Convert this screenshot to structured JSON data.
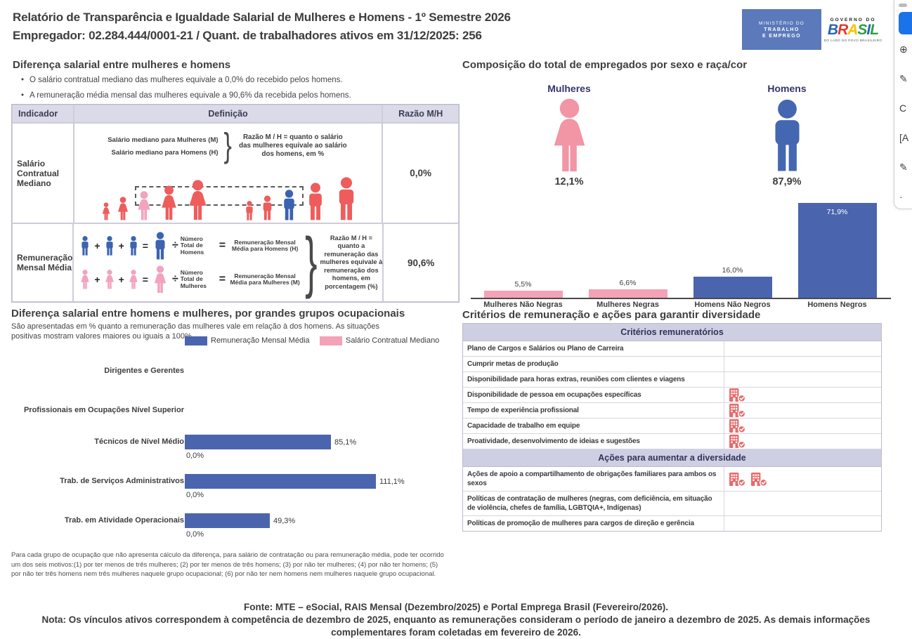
{
  "header": {
    "title": "Relatório de Transparência e Igualdade Salarial de Mulheres e Homens - 1º Semestre 2026",
    "subtitle": "Empregador: 02.284.444/0001-21 / Quant. de trabalhadores ativos em 31/12/2025: 256",
    "mte_logo": {
      "line1": "MINISTÉRIO DO",
      "line2": "TRABALHO",
      "line3": "E EMPREGO",
      "bg": "#5b79bb"
    },
    "gov_logo": {
      "top": "GOVERNO DO",
      "brand_letters": [
        {
          "ch": "B",
          "color": "#2766b3"
        },
        {
          "ch": "R",
          "color": "#e03c31"
        },
        {
          "ch": "A",
          "color": "#f5c400"
        },
        {
          "ch": "S",
          "color": "#2e9e41"
        },
        {
          "ch": "I",
          "color": "#2766b3"
        },
        {
          "ch": "L",
          "color": "#2e9e41"
        }
      ],
      "bottom": "DO LADO DO POVO BRASILEIRO"
    }
  },
  "toolbar": {
    "button_color": "#1a73e8",
    "icons": [
      {
        "name": "history-icon",
        "glyph": "⊕"
      },
      {
        "name": "draw-icon",
        "glyph": "✎"
      },
      {
        "name": "refresh-icon",
        "glyph": "C"
      },
      {
        "name": "text-select-icon",
        "glyph": "[A"
      },
      {
        "name": "pen-icon",
        "glyph": "✎"
      },
      {
        "name": "more-icon",
        "glyph": "·"
      }
    ]
  },
  "salary_gap": {
    "heading": "Diferença salarial entre mulheres e homens",
    "bullets": [
      "O salário contratual mediano das mulheres equivale a 0,0% do recebido pelos homens.",
      "A remuneração média mensal das mulheres equivale a 90,6% da recebida pelos homens."
    ],
    "table": {
      "headers": [
        "Indicador",
        "Definição",
        "Razão M/H"
      ],
      "rows": [
        {
          "indicator": "Salário Contratual Mediano",
          "ratio": "0,0%",
          "def_lines": [
            "Salário mediano para Mulheres (M)",
            "Salário mediano para Homens (H)"
          ],
          "def_note": "Razão M / H = quanto o salário das mulheres equivale ao salário dos homens, em %"
        },
        {
          "indicator": "Remuneração Mensal Média",
          "ratio": "90,6%",
          "formulas": [
            {
              "kind": "male",
              "divisor": "Número Total de Homens",
              "result": "Remuneração Mensal Média para Homens (H)"
            },
            {
              "kind": "female",
              "divisor": "Número Total de Mulheres",
              "result": "Remuneração Mensal Média para Mulheres (M)"
            }
          ],
          "def_note": "Razão M / H = quanto a remuneração das mulheres equivale à remuneração dos homens, em porcentagem (%)"
        }
      ]
    },
    "illustration": {
      "women": [
        "red",
        "red",
        "pink",
        "red",
        "red"
      ],
      "men": [
        "red",
        "red",
        "blue",
        "red",
        "red"
      ]
    }
  },
  "composition": {
    "heading": "Composição do total de empregados por sexo e raça/cor",
    "women_label": "Mulheres",
    "women_pct": "12,1%",
    "men_label": "Homens",
    "men_pct": "87,9%"
  },
  "occupational": {
    "heading": "Diferença salarial entre homens e mulheres, por grandes grupos ocupacionais",
    "subtitle": "São apresentadas em % quanto a remuneração das mulheres vale em relação à dos homens. As situações positivas mostram valores maiores ou iguais a 100%",
    "footnote": "Para cada grupo de ocupação que não apresenta cálculo da diferença, para salário de contratação ou para remuneração média, pode ter ocorrido um dos seis motivos:(1) por ter menos de três mulheres; (2) por ter menos de três homens; (3) por não ter mulheres; (4) por não ter homens; (5) por não ter três homens nem três mulheres naquele grupo ocupacional; (6) por não ter nem homens nem mulheres naquele grupo ocupacional."
  },
  "criteria": {
    "heading": "Critérios de remuneração e ações para garantir diversidade",
    "sections": [
      {
        "header": "Critérios remuneratórios",
        "rows": [
          {
            "label": "Plano de Cargos e Salários ou Plano de Carreira",
            "icons": 0
          },
          {
            "label": "Cumprir metas de produção",
            "icons": 0
          },
          {
            "label": "Disponibilidade para horas extras, reuniões com clientes e viagens",
            "icons": 0
          },
          {
            "label": "Disponibilidade de pessoa em ocupações específicas",
            "icons": 1
          },
          {
            "label": "Tempo de experiência profissional",
            "icons": 1
          },
          {
            "label": "Capacidade de trabalho em equipe",
            "icons": 1
          },
          {
            "label": "Proatividade, desenvolvimento de ideias e sugestões",
            "icons": 1
          }
        ]
      },
      {
        "header": "Ações para aumentar a diversidade",
        "rows": [
          {
            "label": "Ações de apoio a compartilhamento de obrigações familiares para ambos os sexos",
            "icons": 2
          },
          {
            "label": "Políticas de contratação de mulheres (negras, com deficiência, em situação de violência, chefes de família, LGBTQIA+, Indígenas)",
            "icons": 0
          },
          {
            "label": "Políticas de promoção de mulheres para cargos de direção e gerência",
            "icons": 0
          }
        ]
      }
    ]
  },
  "footer": {
    "fonte": "Fonte: MTE – eSocial, RAIS Mensal (Dezembro/2025) e Portal Emprega Brasil (Fevereiro/2026).",
    "nota": "Nota: Os vínculos ativos correspondem à competência de dezembro de 2025, enquanto as remunerações consideram o período de janeiro a dezembro de 2025. As demais informações complementares foram coletadas em fevereiro de 2026."
  },
  "chart_data": [
    {
      "type": "bar",
      "title": "Composição do total de empregados por sexo e raça/cor",
      "categories": [
        "Mulheres Não Negras",
        "Mulheres Negras",
        "Homens Não Negros",
        "Homens Negros"
      ],
      "values": [
        5.5,
        6.6,
        16.0,
        71.9
      ],
      "value_labels": [
        "5,5%",
        "6,6%",
        "16,0%",
        "71,9%"
      ],
      "colors": [
        "#f4a2b6",
        "#f4a2b6",
        "#4a65ae",
        "#4a65ae"
      ],
      "group_summary": {
        "Mulheres": 12.1,
        "Homens": 87.9
      },
      "xlabel": "",
      "ylabel": "",
      "ylim": [
        0,
        80
      ],
      "grid": false,
      "legend": "none"
    },
    {
      "type": "bar-horizontal",
      "title": "Diferença salarial entre homens e mulheres, por grandes grupos ocupacionais",
      "categories": [
        "Dirigentes e Gerentes",
        "Profissionais em Ocupações Nível Superior",
        "Técnicos de Nível Médio",
        "Trab. de Serviços Administrativos",
        "Trab. em Atividade Operacionais"
      ],
      "series": [
        {
          "name": "Remuneração Mensal Média",
          "color": "#4a65ae",
          "values": [
            null,
            null,
            85.1,
            111.1,
            49.3
          ],
          "value_labels": [
            "",
            "",
            "85,1%",
            "111,1%",
            "49,3%"
          ]
        },
        {
          "name": "Salário Contratual Mediano",
          "color": "#f4a2b6",
          "values": [
            null,
            null,
            0.0,
            0.0,
            0.0
          ],
          "value_labels": [
            "",
            "",
            "0,0%",
            "0,0%",
            "0,0%"
          ]
        }
      ],
      "xlim": [
        0,
        120
      ],
      "grid": false,
      "legend_position": "top"
    }
  ],
  "colors": {
    "bar_blue": "#4a65ae",
    "bar_pink": "#f4a2b6",
    "figure_red": "#ee5c5c",
    "figure_pink": "#f2a3c0",
    "figure_blue": "#3c63b0",
    "comp_female": "#f295a5",
    "comp_male": "#4467b2",
    "icon_red": "#e96a6a",
    "header_lavender": "#dadae9",
    "section_lavender": "#cfcfe3"
  }
}
